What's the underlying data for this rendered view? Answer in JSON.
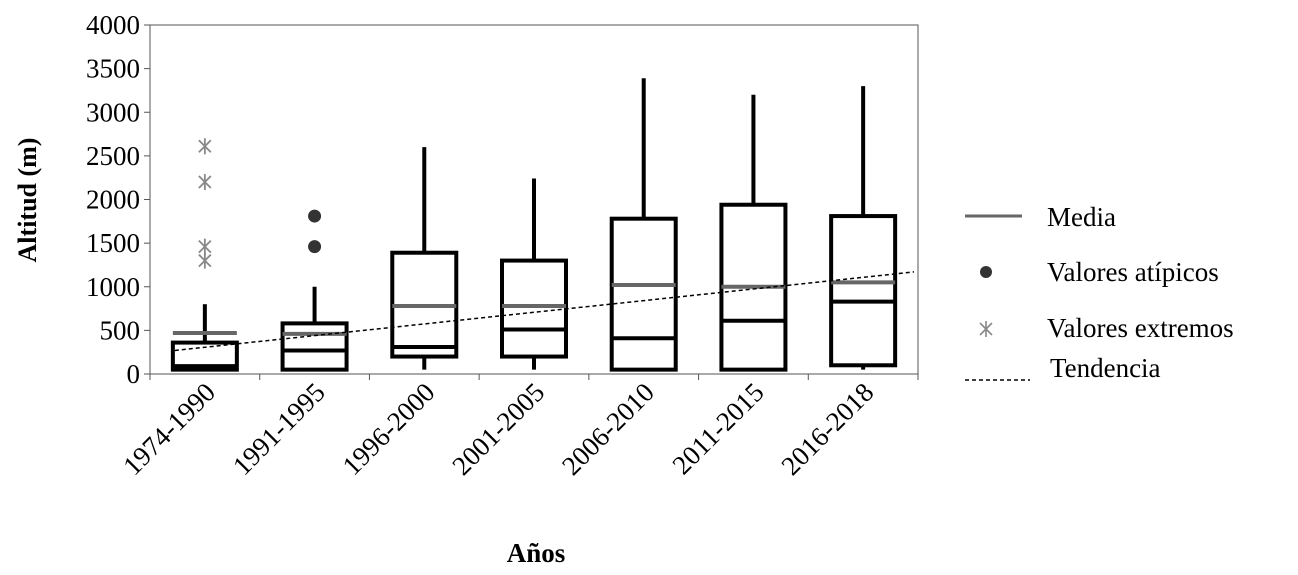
{
  "chart_data": {
    "type": "box",
    "xlabel": "Años",
    "ylabel": "Altitud (m)",
    "ylim": [
      0,
      4000
    ],
    "yticks": [
      0,
      500,
      1000,
      1500,
      2000,
      2500,
      3000,
      3500,
      4000
    ],
    "categories": [
      "1974-1990",
      "1991-1995",
      "1996-2000",
      "2001-2005",
      "2006-2010",
      "2011-2015",
      "2016-2018"
    ],
    "boxes": [
      {
        "min": 50,
        "q1": 50,
        "median": 90,
        "q3": 360,
        "max": 800,
        "mean": 470
      },
      {
        "min": 50,
        "q1": 50,
        "median": 270,
        "q3": 580,
        "max": 1000,
        "mean": 460
      },
      {
        "min": 50,
        "q1": 200,
        "median": 310,
        "q3": 1390,
        "max": 2600,
        "mean": 780
      },
      {
        "min": 50,
        "q1": 200,
        "median": 510,
        "q3": 1300,
        "max": 2240,
        "mean": 780
      },
      {
        "min": 50,
        "q1": 50,
        "median": 410,
        "q3": 1780,
        "max": 3390,
        "mean": 1020
      },
      {
        "min": 50,
        "q1": 50,
        "median": 610,
        "q3": 1940,
        "max": 3200,
        "mean": 1000
      },
      {
        "min": 50,
        "q1": 100,
        "median": 830,
        "q3": 1810,
        "max": 3300,
        "mean": 1050
      }
    ],
    "outliers": [
      {
        "category": "1991-1995",
        "value": 1810
      },
      {
        "category": "1991-1995",
        "value": 1460
      }
    ],
    "extremes": [
      {
        "category": "1974-1990",
        "value": 2610
      },
      {
        "category": "1974-1990",
        "value": 2200
      },
      {
        "category": "1974-1990",
        "value": 1460
      },
      {
        "category": "1974-1990",
        "value": 1300
      }
    ],
    "trend": {
      "start": 270,
      "end": 1170
    },
    "legend": {
      "position": "right",
      "items": [
        "Media",
        "Valores atípicos",
        "Valores extremos",
        "Tendencia"
      ]
    },
    "grid": false,
    "colors": {
      "box": "#000000",
      "mean": "#666666",
      "outlier": "#333333",
      "extreme": "#888888",
      "trend": "#000000"
    }
  }
}
